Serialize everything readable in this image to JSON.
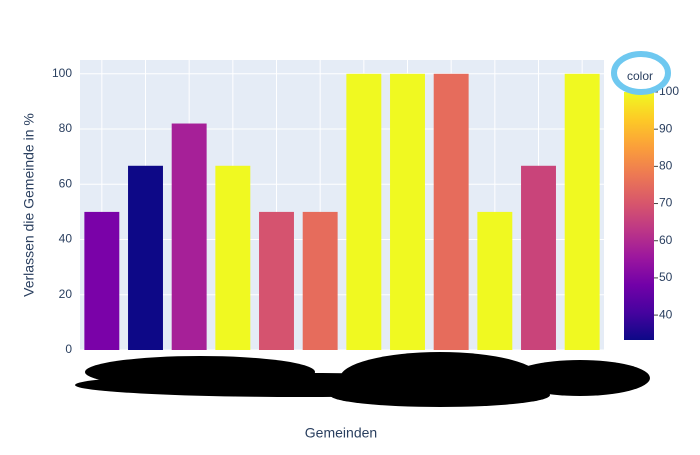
{
  "chart_data": {
    "type": "bar",
    "categories": [
      null,
      null,
      null,
      null,
      null,
      null,
      null,
      null,
      null,
      null,
      null,
      null
    ],
    "values": [
      50,
      66.7,
      82,
      66.7,
      50,
      50,
      100,
      100,
      100,
      50,
      66.7,
      100
    ],
    "colors": [
      "#7a02a8",
      "#0d0887",
      "#a62098",
      "#f0f921",
      "#d5536f",
      "#e66c5c",
      "#f0f921",
      "#f0f921",
      "#e66c5c",
      "#f0f921",
      "#c9447a",
      "#f0f921"
    ],
    "ylim": [
      0,
      105
    ],
    "yticks": [
      0,
      20,
      40,
      60,
      80,
      100
    ],
    "grid": true,
    "xlabel": "Gemeinden",
    "ylabel": "Verlassen die Gemeinde in %",
    "colorbar": {
      "title": "color",
      "lim": [
        33.3,
        100
      ],
      "ticks": [
        40,
        50,
        60,
        70,
        80,
        90,
        100
      ],
      "colorscale": [
        "#0d0887",
        "#46039f",
        "#7201a8",
        "#9c179e",
        "#bd3786",
        "#d8576b",
        "#ed7953",
        "#fb9f3a",
        "#fdca26",
        "#f0f921"
      ]
    }
  }
}
